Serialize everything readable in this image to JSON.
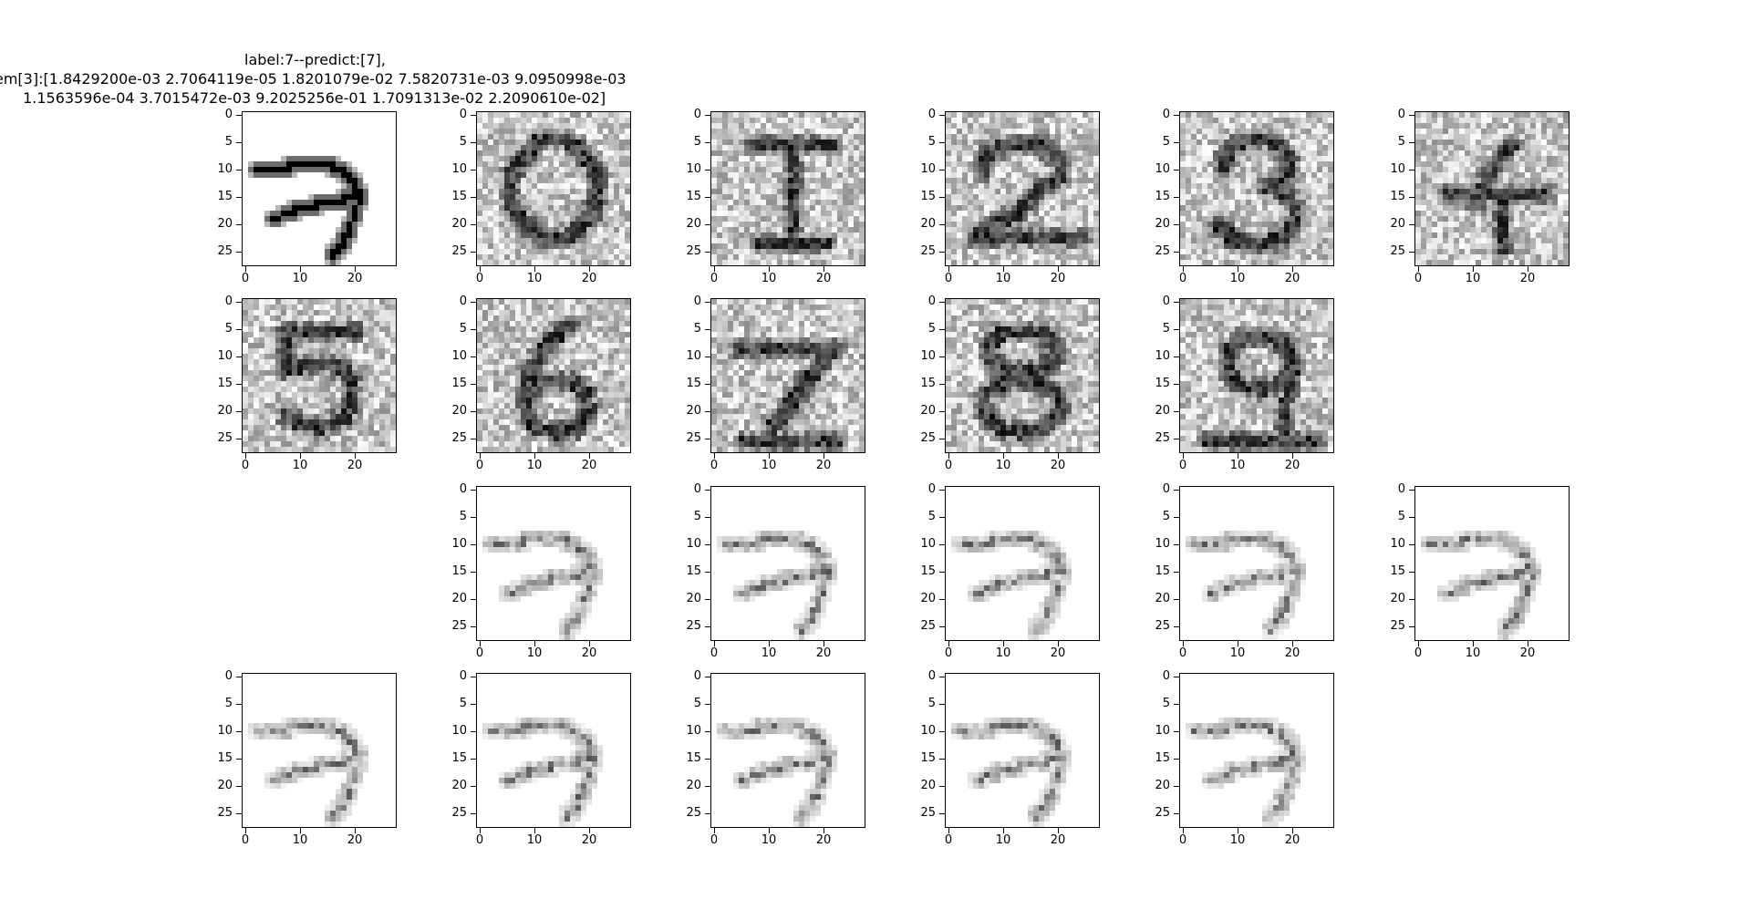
{
  "figure": {
    "title_lines": [
      "label:7--predict:[7],",
      "em[3]:[1.8429200e-03 2.7064119e-05 1.8201079e-02 7.5820731e-03 9.0950998e-03",
      " 1.1563596e-04 3.7015472e-03 9.2025256e-01 1.7091313e-02 2.2090610e-02]"
    ]
  },
  "chart_data": {
    "type": "heatmap",
    "colormap": "gray_r",
    "image_size": [
      28,
      28
    ],
    "xticks": [
      0,
      10,
      20
    ],
    "yticks": [
      0,
      5,
      10,
      15,
      20,
      25
    ],
    "grid": false,
    "subplots": [
      {
        "row": 0,
        "col": 0,
        "depicts": "7",
        "style": "clean"
      },
      {
        "row": 0,
        "col": 1,
        "depicts": "0",
        "style": "noisy"
      },
      {
        "row": 0,
        "col": 2,
        "depicts": "1",
        "style": "noisy"
      },
      {
        "row": 0,
        "col": 3,
        "depicts": "2",
        "style": "noisy"
      },
      {
        "row": 0,
        "col": 4,
        "depicts": "3",
        "style": "noisy"
      },
      {
        "row": 0,
        "col": 5,
        "depicts": "4",
        "style": "noisy"
      },
      {
        "row": 1,
        "col": 0,
        "depicts": "5",
        "style": "noisy"
      },
      {
        "row": 1,
        "col": 1,
        "depicts": "6",
        "style": "noisy"
      },
      {
        "row": 1,
        "col": 2,
        "depicts": "7",
        "style": "noisy"
      },
      {
        "row": 1,
        "col": 3,
        "depicts": "8",
        "style": "noisy"
      },
      {
        "row": 1,
        "col": 4,
        "depicts": "9",
        "style": "noisy"
      },
      {
        "row": 2,
        "col": 1,
        "depicts": "7",
        "style": "faint"
      },
      {
        "row": 2,
        "col": 2,
        "depicts": "7",
        "style": "faint"
      },
      {
        "row": 2,
        "col": 3,
        "depicts": "7",
        "style": "faint"
      },
      {
        "row": 2,
        "col": 4,
        "depicts": "7",
        "style": "faint"
      },
      {
        "row": 2,
        "col": 5,
        "depicts": "7",
        "style": "faint"
      },
      {
        "row": 3,
        "col": 0,
        "depicts": "7",
        "style": "faint"
      },
      {
        "row": 3,
        "col": 1,
        "depicts": "7",
        "style": "faint"
      },
      {
        "row": 3,
        "col": 2,
        "depicts": "7",
        "style": "faint"
      },
      {
        "row": 3,
        "col": 3,
        "depicts": "7",
        "style": "faint"
      },
      {
        "row": 3,
        "col": 4,
        "depicts": "7",
        "style": "faint"
      }
    ]
  }
}
